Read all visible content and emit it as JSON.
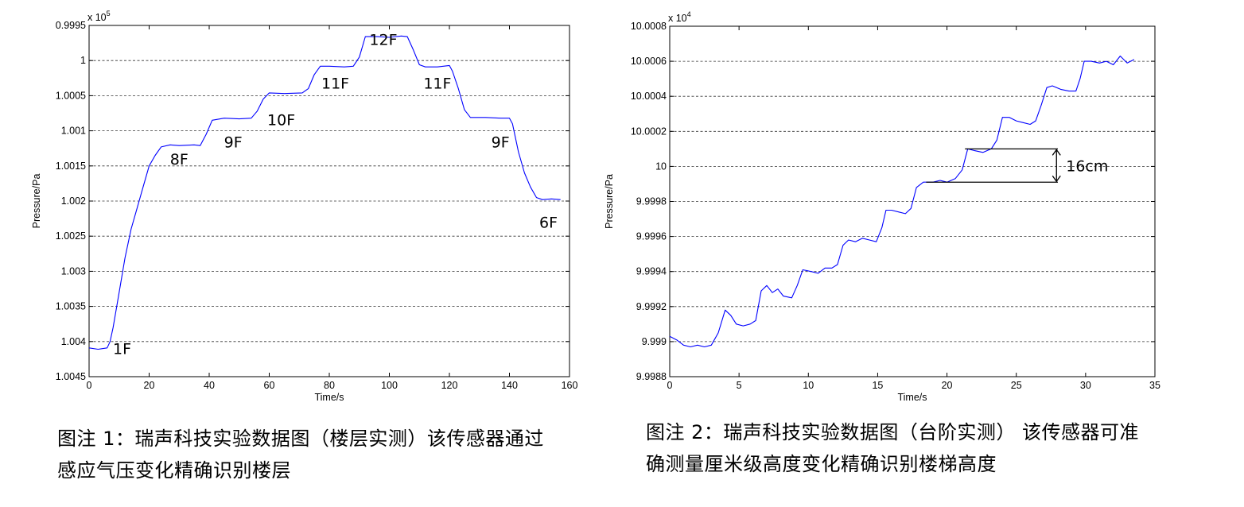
{
  "chart_data": [
    {
      "type": "line",
      "xlabel": "Time/s",
      "ylabel": "Pressure/Pa",
      "exponent": "x 10",
      "exponent_power": "5",
      "xlim": [
        0,
        160
      ],
      "ylim": [
        0.9995,
        1.0045
      ],
      "y_reversed": true,
      "grid": "horizontal-dashed",
      "xticks": [
        "0",
        "20",
        "40",
        "60",
        "80",
        "100",
        "120",
        "140",
        "160"
      ],
      "yticks": [
        "0.9995",
        "1",
        "1.0005",
        "1.001",
        "1.0015",
        "1.002",
        "1.0025",
        "1.003",
        "1.0035",
        "1.004",
        "1.0045"
      ],
      "series": [
        {
          "color": "#0000ff",
          "points": [
            [
              0,
              1.00409
            ],
            [
              3,
              1.00411
            ],
            [
              6,
              1.00409
            ],
            [
              7,
              1.004
            ],
            [
              8,
              1.0038
            ],
            [
              10,
              1.0033
            ],
            [
              12,
              1.0028
            ],
            [
              14,
              1.0024
            ],
            [
              16,
              1.0021
            ],
            [
              18,
              1.0018
            ],
            [
              20,
              1.0015
            ],
            [
              22,
              1.00135
            ],
            [
              24,
              1.00123
            ],
            [
              27,
              1.0012
            ],
            [
              30,
              1.00121
            ],
            [
              35,
              1.0012
            ],
            [
              37,
              1.00121
            ],
            [
              39,
              1.00105
            ],
            [
              41,
              1.00085
            ],
            [
              45,
              1.00082
            ],
            [
              50,
              1.00083
            ],
            [
              54,
              1.00082
            ],
            [
              56,
              1.00072
            ],
            [
              58,
              1.00055
            ],
            [
              60,
              1.00046
            ],
            [
              65,
              1.00047
            ],
            [
              71,
              1.00046
            ],
            [
              73,
              1.0004
            ],
            [
              75,
              1.0002
            ],
            [
              77,
              1.00008
            ],
            [
              80,
              1.00008
            ],
            [
              85,
              1.00009
            ],
            [
              88,
              1.00008
            ],
            [
              90,
              0.99995
            ],
            [
              92,
              0.99966
            ],
            [
              96,
              0.99966
            ],
            [
              100,
              0.99967
            ],
            [
              104,
              0.99965
            ],
            [
              106,
              0.99966
            ],
            [
              108,
              0.99985
            ],
            [
              110,
              1.00006
            ],
            [
              112,
              1.00009
            ],
            [
              116,
              1.00009
            ],
            [
              120,
              1.00007
            ],
            [
              121,
              1.00015
            ],
            [
              123,
              1.0004
            ],
            [
              125,
              1.0007
            ],
            [
              127,
              1.00081
            ],
            [
              132,
              1.00081
            ],
            [
              137,
              1.00082
            ],
            [
              140,
              1.00082
            ],
            [
              141,
              1.0009
            ],
            [
              143,
              1.0013
            ],
            [
              145,
              1.0016
            ],
            [
              147,
              1.0018
            ],
            [
              149,
              1.00195
            ],
            [
              151,
              1.00198
            ],
            [
              154,
              1.00197
            ],
            [
              157,
              1.00198
            ]
          ]
        }
      ],
      "annotations": [
        {
          "text": "1F",
          "x": 11,
          "y": 1.0041
        },
        {
          "text": "8F",
          "x": 30,
          "y": 1.0014
        },
        {
          "text": "9F",
          "x": 48,
          "y": 1.00116
        },
        {
          "text": "10F",
          "x": 64,
          "y": 1.00084
        },
        {
          "text": "11F",
          "x": 82,
          "y": 1.00032
        },
        {
          "text": "12F",
          "x": 98,
          "y": 0.9997
        },
        {
          "text": "11F",
          "x": 116,
          "y": 1.00032
        },
        {
          "text": "9F",
          "x": 137,
          "y": 1.00116
        },
        {
          "text": "6F",
          "x": 153,
          "y": 1.0023
        }
      ]
    },
    {
      "type": "line",
      "xlabel": "Time/s",
      "ylabel": "Pressure/Pa",
      "exponent": "x 10",
      "exponent_power": "4",
      "xlim": [
        0,
        35
      ],
      "ylim": [
        9.9988,
        10.0008
      ],
      "grid": "horizontal-dashed",
      "xticks": [
        "0",
        "5",
        "10",
        "15",
        "20",
        "25",
        "30",
        "35"
      ],
      "yticks": [
        "9.9988",
        "9.999",
        "9.9992",
        "9.9994",
        "9.9996",
        "9.9998",
        "10",
        "10.0002",
        "10.0004",
        "10.0006",
        "10.0008"
      ],
      "series": [
        {
          "color": "#0000ff",
          "points": [
            [
              0,
              9.99903
            ],
            [
              0.5,
              9.99901
            ],
            [
              1,
              9.99898
            ],
            [
              1.5,
              9.99897
            ],
            [
              2,
              9.99898
            ],
            [
              2.5,
              9.99897
            ],
            [
              3,
              9.99898
            ],
            [
              3.5,
              9.99905
            ],
            [
              4,
              9.99918
            ],
            [
              4.4,
              9.99915
            ],
            [
              4.8,
              9.9991
            ],
            [
              5.3,
              9.99909
            ],
            [
              5.8,
              9.9991
            ],
            [
              6.2,
              9.99912
            ],
            [
              6.6,
              9.99929
            ],
            [
              7,
              9.99932
            ],
            [
              7.4,
              9.99928
            ],
            [
              7.8,
              9.9993
            ],
            [
              8.2,
              9.99926
            ],
            [
              8.8,
              9.99925
            ],
            [
              9.2,
              9.99932
            ],
            [
              9.6,
              9.99941
            ],
            [
              10.2,
              9.9994
            ],
            [
              10.7,
              9.99939
            ],
            [
              11.2,
              9.99942
            ],
            [
              11.7,
              9.99942
            ],
            [
              12.1,
              9.99944
            ],
            [
              12.5,
              9.99955
            ],
            [
              12.9,
              9.99958
            ],
            [
              13.4,
              9.99957
            ],
            [
              13.9,
              9.99959
            ],
            [
              14.4,
              9.99958
            ],
            [
              14.9,
              9.99957
            ],
            [
              15.3,
              9.99965
            ],
            [
              15.6,
              9.99975
            ],
            [
              16,
              9.99975
            ],
            [
              16.5,
              9.99974
            ],
            [
              17,
              9.99973
            ],
            [
              17.4,
              9.99976
            ],
            [
              17.8,
              9.99988
            ],
            [
              18.3,
              9.99991
            ],
            [
              19,
              9.99991
            ],
            [
              19.5,
              9.99992
            ],
            [
              20,
              9.99991
            ],
            [
              20.6,
              9.99993
            ],
            [
              21.1,
              9.99998
            ],
            [
              21.5,
              10.0001
            ],
            [
              22,
              10.00009
            ],
            [
              22.6,
              10.00008
            ],
            [
              23.2,
              10.0001
            ],
            [
              23.6,
              10.00015
            ],
            [
              24,
              10.00028
            ],
            [
              24.5,
              10.00028
            ],
            [
              25,
              10.00026
            ],
            [
              25.5,
              10.00025
            ],
            [
              26,
              10.00024
            ],
            [
              26.4,
              10.00026
            ],
            [
              26.8,
              10.00035
            ],
            [
              27.2,
              10.00045
            ],
            [
              27.6,
              10.00046
            ],
            [
              28.2,
              10.00044
            ],
            [
              28.8,
              10.00043
            ],
            [
              29.3,
              10.00043
            ],
            [
              29.6,
              10.0005
            ],
            [
              29.9,
              10.0006
            ],
            [
              30.4,
              10.0006
            ],
            [
              31,
              10.00059
            ],
            [
              31.5,
              10.0006
            ],
            [
              32,
              10.00058
            ],
            [
              32.5,
              10.00063
            ],
            [
              33,
              10.00059
            ],
            [
              33.5,
              10.00061
            ]
          ]
        }
      ],
      "annotations": [
        {
          "text": "16cm"
        }
      ]
    }
  ],
  "captions": {
    "caption1": [
      "图注 1：瑞声科技实验数据图（楼层实测）该传感器通过",
      "感应气压变化精确识别楼层"
    ],
    "caption2": [
      "图注 2：瑞声科技实验数据图（台阶实测） 该传感器可准",
      "确测量厘米级高度变化精确识别楼梯高度"
    ]
  }
}
